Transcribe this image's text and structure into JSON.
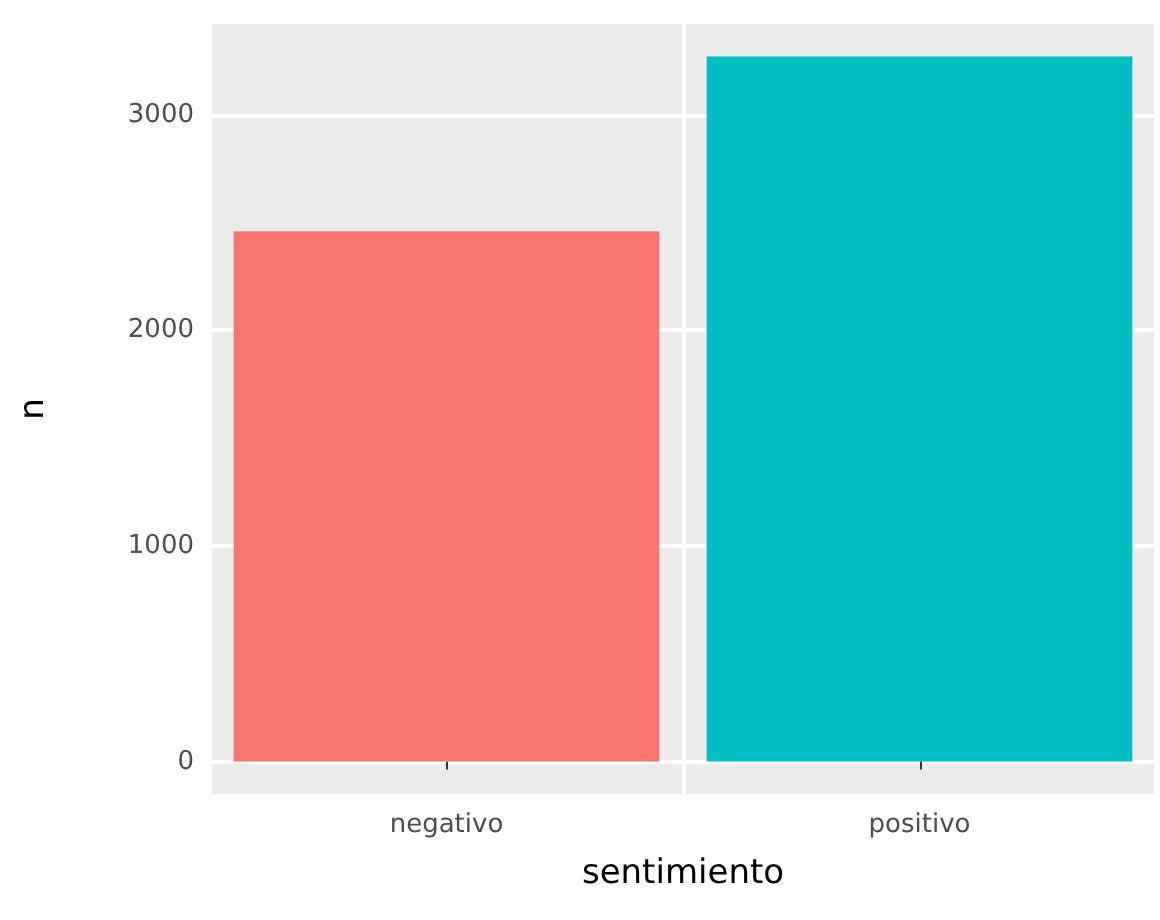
{
  "chart_data": {
    "type": "bar",
    "xlabel": "sentimiento",
    "ylabel": "n",
    "categories": [
      "negativo",
      "positivo"
    ],
    "values": [
      2460,
      3270
    ],
    "colors": [
      "#f8766d",
      "#00bfc4"
    ],
    "ylim": [
      -160,
      3430
    ],
    "yticks": [
      0,
      1000,
      2000,
      3000
    ],
    "grid": true
  }
}
